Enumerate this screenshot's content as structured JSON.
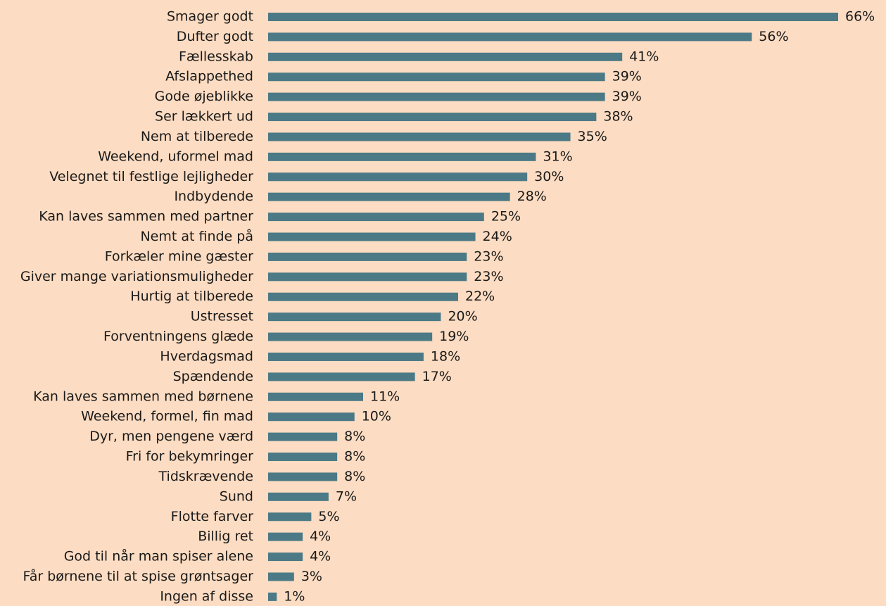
{
  "chart_data": {
    "type": "bar",
    "orientation": "horizontal",
    "color": "#4b7a86",
    "categories": [
      "Smager godt",
      "Dufter godt",
      "Fællesskab",
      "Afslappethed",
      "Gode øjeblikke",
      "Ser lækkert ud",
      "Nem at tilberede",
      "Weekend, uformel mad",
      "Velegnet til festlige lejligheder",
      "Indbydende",
      "Kan laves sammen med partner",
      "Nemt at finde på",
      "Forkæler mine gæster",
      "Giver mange variationsmuligheder",
      "Hurtig at tilberede",
      "Ustresset",
      "Forventningens glæde",
      "Hverdagsmad",
      "Spændende",
      "Kan laves sammen med børnene",
      "Weekend, formel, fin mad",
      "Dyr, men pengene værd",
      "Fri for bekymringer",
      "Tidskrævende",
      "Sund",
      "Flotte farver",
      "Billig ret",
      "God til når man spiser alene",
      "Får børnene til at spise grøntsager",
      "Ingen af disse"
    ],
    "values": [
      66,
      56,
      41,
      39,
      39,
      38,
      35,
      31,
      30,
      28,
      25,
      24,
      23,
      23,
      22,
      20,
      19,
      18,
      17,
      11,
      10,
      8,
      8,
      8,
      7,
      5,
      4,
      4,
      3,
      1
    ],
    "value_labels": [
      "66%",
      "56%",
      "41%",
      "39%",
      "39%",
      "38%",
      "35%",
      "31%",
      "30%",
      "28%",
      "25%",
      "24%",
      "23%",
      "23%",
      "22%",
      "20%",
      "19%",
      "18%",
      "17%",
      "11%",
      "10%",
      "8%",
      "8%",
      "8%",
      "7%",
      "5%",
      "4%",
      "4%",
      "3%",
      "1%"
    ]
  }
}
